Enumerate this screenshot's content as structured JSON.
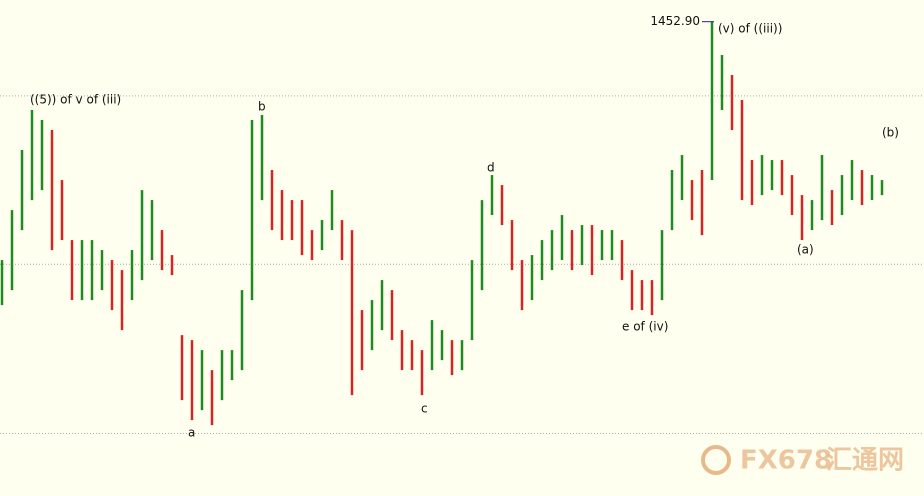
{
  "chart_data": {
    "type": "range-bar",
    "high": [
      1424.3,
      1430.3,
      1437.5,
      1442.3,
      1441.1,
      1439.9,
      1433.9,
      1426.7,
      1426.7,
      1426.7,
      1425.5,
      1424.3,
      1423.1,
      1425.5,
      1432.7,
      1431.5,
      1427.9,
      1424.9,
      1415.3,
      1414.7,
      1413.5,
      1411.1,
      1413.5,
      1413.5,
      1420.7,
      1441.1,
      1441.7,
      1435.1,
      1432.7,
      1431.5,
      1431.5,
      1427.9,
      1429.1,
      1432.7,
      1429.1,
      1427.9,
      1418.3,
      1419.5,
      1421.9,
      1420.7,
      1415.9,
      1414.7,
      1413.5,
      1417.1,
      1415.9,
      1414.7,
      1414.7,
      1424.3,
      1431.5,
      1434.5,
      1433.3,
      1429.1,
      1424.3,
      1424.9,
      1426.7,
      1427.9,
      1429.7,
      1427.9,
      1428.5,
      1428.5,
      1427.9,
      1427.9,
      1426.7,
      1423.1,
      1421.9,
      1421.9,
      1427.9,
      1435.1,
      1436.9,
      1433.9,
      1435.1,
      1452.9,
      1448.9,
      1446.5,
      1443.5,
      1436.3,
      1436.9,
      1436.3,
      1436.3,
      1434.5,
      1432.1,
      1431.5,
      1436.9,
      1432.7,
      1434.5,
      1436.3,
      1435.1,
      1434.5,
      1433.9
    ],
    "low": [
      1418.9,
      1420.7,
      1427.9,
      1431.5,
      1432.7,
      1425.5,
      1426.7,
      1419.5,
      1419.5,
      1419.5,
      1420.7,
      1418.3,
      1415.9,
      1419.5,
      1421.9,
      1424.3,
      1423.1,
      1422.5,
      1407.5,
      1405.1,
      1406.3,
      1404.5,
      1407.5,
      1409.9,
      1411.1,
      1419.5,
      1431.5,
      1427.9,
      1426.7,
      1426.7,
      1424.9,
      1424.3,
      1425.5,
      1427.9,
      1424.3,
      1408.1,
      1411.1,
      1413.5,
      1415.9,
      1414.7,
      1411.1,
      1411.1,
      1408.1,
      1411.1,
      1412.3,
      1410.5,
      1411.1,
      1414.7,
      1420.7,
      1429.7,
      1428.5,
      1423.1,
      1418.3,
      1419.5,
      1421.9,
      1423.1,
      1424.3,
      1423.1,
      1423.7,
      1422.5,
      1424.3,
      1424.3,
      1421.9,
      1418.3,
      1418.3,
      1417.7,
      1419.5,
      1427.9,
      1431.5,
      1429.1,
      1427.3,
      1433.9,
      1442.3,
      1439.9,
      1431.5,
      1430.9,
      1432.1,
      1432.7,
      1432.1,
      1429.7,
      1426.7,
      1427.9,
      1429.1,
      1428.5,
      1429.7,
      1431.5,
      1430.9,
      1431.5,
      1432.1
    ],
    "up_color": "#1f8a1f",
    "down_color": "#d42424",
    "ylim": [
      1396,
      1455.5
    ],
    "hlines": [
      1444.0,
      1423.8,
      1403.5
    ],
    "high_label": {
      "value": 1452.9,
      "label": "1452.90"
    },
    "annotations": [
      "((5)) of v of (iii)",
      "b",
      "a",
      "c",
      "d",
      "e of (iv)",
      "(v) of ((iii))",
      "(a)",
      "(b)"
    ],
    "watermark": [
      "FX678",
      "汇通网"
    ]
  }
}
